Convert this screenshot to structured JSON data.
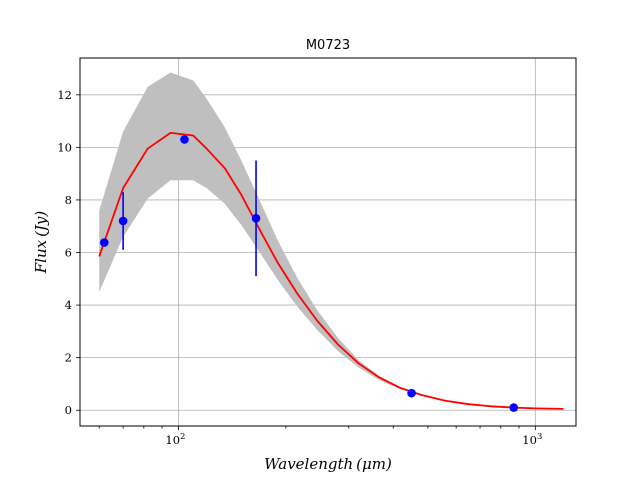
{
  "chart_data": {
    "type": "line",
    "title": "M0723",
    "xlabel": "Wavelength (μm)",
    "ylabel": "Flux (Jy)",
    "xscale": "log",
    "xlim": [
      53,
      1300
    ],
    "ylim": [
      -0.6,
      13.4
    ],
    "grid": true,
    "y_ticks": [
      0,
      2,
      4,
      6,
      8,
      10,
      12
    ],
    "x_ticks": [
      {
        "value": 100,
        "base": "10",
        "exp": "2"
      },
      {
        "value": 1000,
        "base": "10",
        "exp": "3"
      }
    ],
    "x_minor_ticks": [
      60,
      70,
      80,
      90,
      200,
      300,
      400,
      500,
      600,
      700,
      800,
      900
    ],
    "model_curve": {
      "color": "#ff0000",
      "x": [
        60,
        70,
        82,
        95,
        110,
        120,
        135,
        150,
        170,
        190,
        215,
        245,
        280,
        320,
        365,
        420,
        480,
        560,
        650,
        750,
        870,
        1000,
        1200
      ],
      "y": [
        5.85,
        8.45,
        9.95,
        10.55,
        10.45,
        9.95,
        9.2,
        8.2,
        6.8,
        5.6,
        4.45,
        3.4,
        2.5,
        1.78,
        1.25,
        0.84,
        0.58,
        0.36,
        0.23,
        0.15,
        0.1,
        0.07,
        0.05
      ]
    },
    "uncertainty_band": {
      "color": "#bfbfbf",
      "x": [
        60,
        70,
        82,
        95,
        110,
        120,
        135,
        150,
        170,
        190,
        215,
        245,
        280,
        320,
        365,
        420,
        480
      ],
      "upper": [
        7.6,
        10.6,
        12.3,
        12.85,
        12.55,
        11.85,
        10.75,
        9.5,
        7.9,
        6.45,
        5.05,
        3.8,
        2.75,
        1.9,
        1.3,
        0.85,
        0.58
      ],
      "lower": [
        4.5,
        6.6,
        8.05,
        8.75,
        8.75,
        8.45,
        7.85,
        7.05,
        5.95,
        4.95,
        3.95,
        3.05,
        2.25,
        1.62,
        1.15,
        0.8,
        0.56
      ]
    },
    "observations": {
      "color": "#0000ff",
      "points": [
        {
          "x": 62,
          "y": 6.38,
          "err": 0
        },
        {
          "x": 70,
          "y": 7.2,
          "err": 1.1
        },
        {
          "x": 104,
          "y": 10.3,
          "err": 0
        },
        {
          "x": 165,
          "y": 7.3,
          "err": 2.2
        },
        {
          "x": 450,
          "y": 0.65,
          "err": 0
        },
        {
          "x": 870,
          "y": 0.1,
          "err": 0
        }
      ]
    }
  }
}
